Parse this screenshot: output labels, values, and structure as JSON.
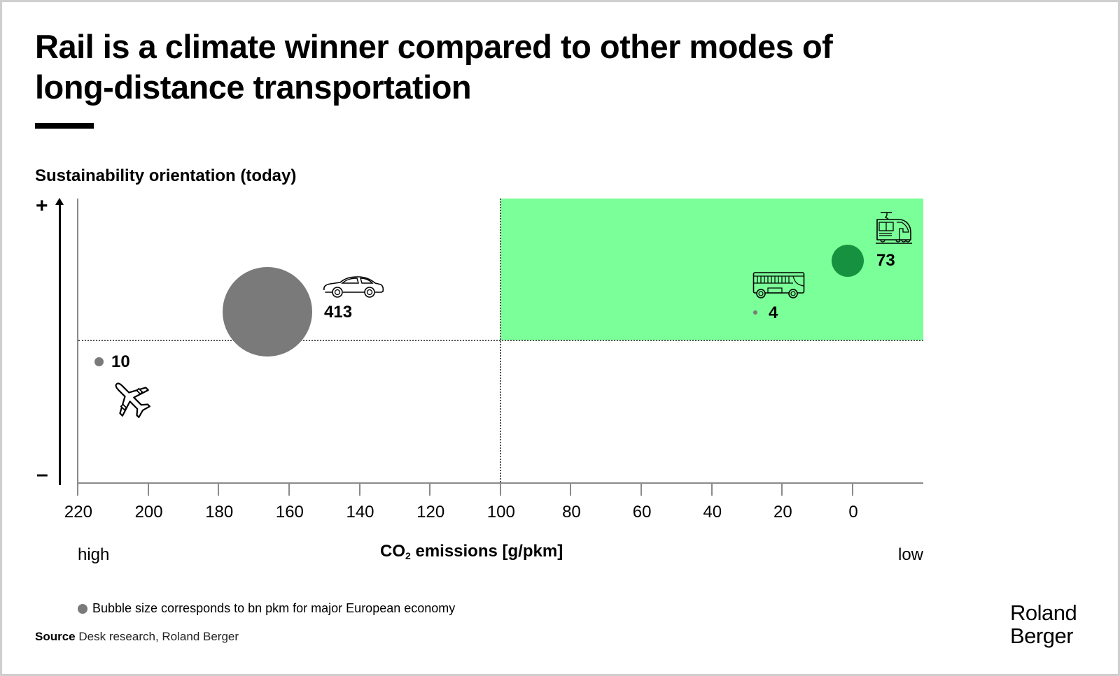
{
  "title": {
    "line1": "Rail is a climate winner compared to other modes of",
    "line2": "long-distance transportation"
  },
  "y_axis": {
    "title": "Sustainability orientation (today)",
    "top_label": "+",
    "bottom_label": "–"
  },
  "x_axis": {
    "title_prefix": "CO",
    "title_sub": "2",
    "title_suffix": " emissions [g/pkm]",
    "left_label": "high",
    "right_label": "low",
    "ticks": [
      "220",
      "200",
      "180",
      "160",
      "140",
      "120",
      "100",
      "80",
      "60",
      "40",
      "20",
      "0"
    ]
  },
  "legend": {
    "text": "Bubble size corresponds to bn pkm for major European economy"
  },
  "source": {
    "label": "Source",
    "text": " Desk research, Roland Berger"
  },
  "brand": {
    "line1": "Roland",
    "line2": "Berger"
  },
  "colors": {
    "green_zone": "#7bff98",
    "rail_bubble": "#16913f",
    "gray_bubble": "#7a7a7a",
    "axis": "#8a8a8a"
  },
  "chart_data": {
    "type": "scatter",
    "title": "Rail is a climate winner compared to other modes of long-distance transportation",
    "xlabel": "CO2 emissions [g/pkm]",
    "ylabel": "Sustainability orientation (today)",
    "xlim": [
      220,
      -20
    ],
    "x_reversed": true,
    "x_ticks": [
      220,
      200,
      180,
      160,
      140,
      120,
      100,
      80,
      60,
      40,
      20,
      0
    ],
    "x_end_labels": {
      "left": "high",
      "right": "low"
    },
    "y_end_labels": {
      "top": "+",
      "bottom": "–"
    },
    "grid": false,
    "reference_lines": {
      "x": 100,
      "y": "midpoint (dotted)"
    },
    "highlight_zone": {
      "x_from": 100,
      "x_to": -20,
      "y": "upper half",
      "color": "#7bff98"
    },
    "bubble_size_meaning": "bn pkm for major European economy",
    "series": [
      {
        "name": "Plane",
        "icon": "airplane-icon",
        "co2_g_pkm": 214,
        "sustainability": "low (below midline)",
        "bn_pkm": 10,
        "color": "#7a7a7a"
      },
      {
        "name": "Car",
        "icon": "car-icon",
        "co2_g_pkm": 166,
        "sustainability": "medium-high (above midline)",
        "bn_pkm": 413,
        "color": "#7a7a7a"
      },
      {
        "name": "Bus",
        "icon": "bus-icon",
        "co2_g_pkm": 28,
        "sustainability": "high (above midline)",
        "bn_pkm": 4,
        "color": "#7a7a7a"
      },
      {
        "name": "Rail",
        "icon": "train-icon",
        "co2_g_pkm": 1,
        "sustainability": "highest",
        "bn_pkm": 73,
        "color": "#16913f"
      }
    ]
  },
  "points": {
    "plane": {
      "label": "10"
    },
    "car": {
      "label": "413"
    },
    "bus": {
      "label": "4"
    },
    "rail": {
      "label": "73"
    }
  }
}
